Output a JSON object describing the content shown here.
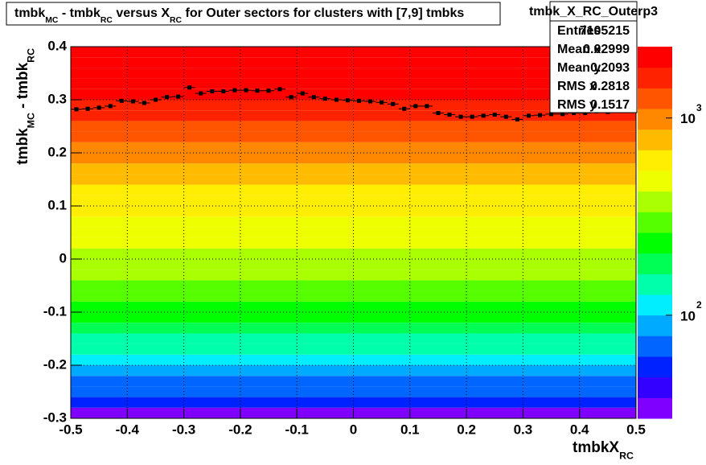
{
  "chart_data": {
    "type": "heatmap",
    "title": [
      "tmbk",
      "MC",
      " - tmbk",
      "RC",
      " versus X",
      "RC",
      " for Outer sectors for clusters with [7,9] tmbks"
    ],
    "xlabel": [
      "tmbkX",
      "RC"
    ],
    "ylabel": [
      "tmbk",
      "MC",
      " - tmbk",
      "RC"
    ],
    "xlim": [
      -0.5,
      0.5
    ],
    "ylim": [
      -0.3,
      0.4
    ],
    "xticks": [
      -0.5,
      -0.4,
      -0.3,
      -0.2,
      -0.1,
      0,
      0.1,
      0.2,
      0.3,
      0.4,
      0.5
    ],
    "yticks": [
      -0.3,
      -0.2,
      -0.1,
      0,
      0.1,
      0.2,
      0.3,
      0.4
    ],
    "grid": true,
    "log_z": true,
    "zlim": [
      30,
      2300
    ],
    "zticks": [
      {
        "value": 100,
        "label": "10",
        "exponent": "2"
      },
      {
        "value": 1000,
        "label": "10",
        "exponent": "3"
      }
    ],
    "palette": [
      "#7f00ff",
      "#3300ff",
      "#0022ff",
      "#0066ff",
      "#00aaff",
      "#00eeff",
      "#00ffaa",
      "#00ff55",
      "#00ff00",
      "#55ff00",
      "#aaff00",
      "#eeff00",
      "#ffee00",
      "#ffbb00",
      "#ff8800",
      "#ff5500",
      "#ff2200",
      "#ff0000"
    ],
    "y_bins": [
      -0.3,
      -0.28,
      -0.26,
      -0.24,
      -0.22,
      -0.2,
      -0.18,
      -0.16,
      -0.14,
      -0.12,
      -0.1,
      -0.08,
      -0.06,
      -0.04,
      -0.02,
      0,
      0.02,
      0.04,
      0.06,
      0.08,
      0.1,
      0.12,
      0.14,
      0.16,
      0.18,
      0.2,
      0.22,
      0.24,
      0.26,
      0.28,
      0.3,
      0.32,
      0.34,
      0.36,
      0.38,
      0.4
    ],
    "z": [
      37,
      50,
      65,
      78,
      93,
      110,
      131,
      156,
      186,
      211,
      241,
      274,
      313,
      341,
      372,
      405,
      443,
      482,
      526,
      574,
      627,
      682,
      745,
      813,
      885,
      1009,
      1148,
      1309,
      1493,
      1698,
      1936,
      2109,
      2203,
      2300,
      2300
    ],
    "profile": {
      "color": "#000000",
      "x": [
        -0.49,
        -0.47,
        -0.45,
        -0.43,
        -0.41,
        -0.39,
        -0.37,
        -0.35,
        -0.33,
        -0.31,
        -0.29,
        -0.27,
        -0.25,
        -0.23,
        -0.21,
        -0.19,
        -0.17,
        -0.15,
        -0.13,
        -0.11,
        -0.09,
        -0.07,
        -0.05,
        -0.03,
        -0.01,
        0.01,
        0.03,
        0.05,
        0.07,
        0.09,
        0.11,
        0.13,
        0.15,
        0.17,
        0.19,
        0.21,
        0.23,
        0.25,
        0.27,
        0.29,
        0.31,
        0.33,
        0.35,
        0.37,
        0.39,
        0.41,
        0.43,
        0.45,
        0.47,
        0.49
      ],
      "values": [
        0.282,
        0.283,
        0.285,
        0.288,
        0.298,
        0.297,
        0.294,
        0.3,
        0.305,
        0.306,
        0.323,
        0.312,
        0.316,
        0.316,
        0.318,
        0.318,
        0.317,
        0.317,
        0.32,
        0.305,
        0.312,
        0.305,
        0.302,
        0.3,
        0.299,
        0.298,
        0.297,
        0.295,
        0.292,
        0.283,
        0.288,
        0.288,
        0.275,
        0.272,
        0.268,
        0.268,
        0.27,
        0.272,
        0.268,
        0.263,
        0.27,
        0.271,
        0.273,
        0.273,
        0.275,
        0.275,
        0.278,
        0.277,
        0.283,
        0.285
      ]
    },
    "stats": {
      "name": "tmbk_X_RC_Outerp3",
      "rows": [
        [
          "Entries",
          "7105215"
        ],
        [
          "Mean x",
          "0.02999"
        ],
        [
          "Mean y",
          "0.2093"
        ],
        [
          "RMS x",
          "0.2818"
        ],
        [
          "RMS y",
          "0.1517"
        ]
      ]
    }
  }
}
